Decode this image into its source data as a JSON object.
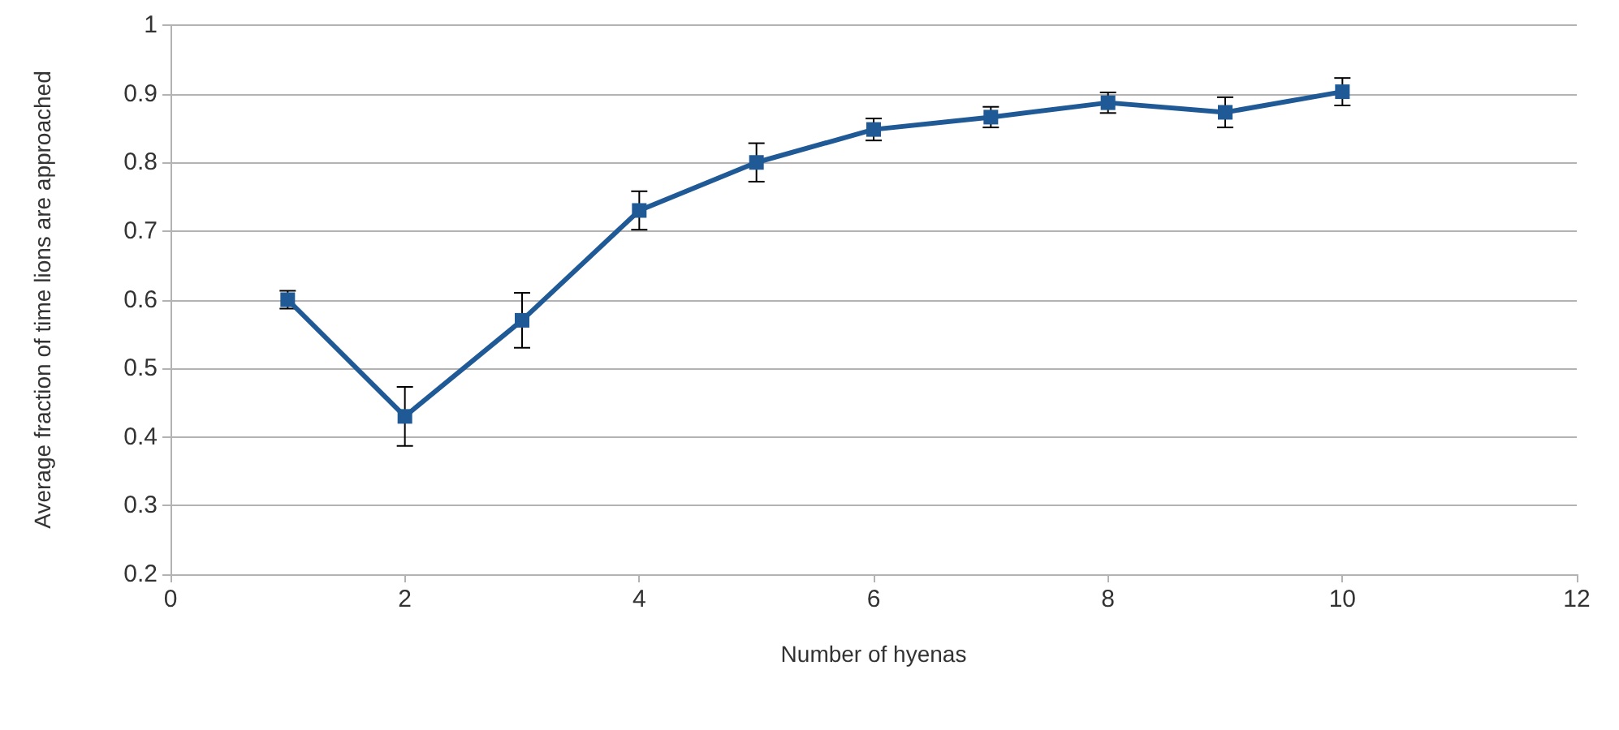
{
  "chart_data": {
    "type": "line",
    "xlabel": "Number of hyenas",
    "ylabel": "Average fraction of time lions are approached",
    "x": [
      1,
      2,
      3,
      4,
      5,
      6,
      7,
      8,
      9,
      10
    ],
    "series": [
      {
        "color": "#1f5a96",
        "values": [
          0.6,
          0.43,
          0.57,
          0.73,
          0.8,
          0.848,
          0.866,
          0.887,
          0.873,
          0.903
        ],
        "errors": [
          0.013,
          0.043,
          0.04,
          0.028,
          0.028,
          0.016,
          0.015,
          0.015,
          0.022,
          0.02
        ]
      }
    ],
    "xlim": [
      0,
      12
    ],
    "xticks": [
      0,
      2,
      4,
      6,
      8,
      10,
      12
    ],
    "ylim": [
      0.2,
      1
    ],
    "yticks": [
      0.2,
      0.3,
      0.4,
      0.5,
      0.6,
      0.7,
      0.8,
      0.9,
      1
    ],
    "grid": "y",
    "marker": "square",
    "line_style": "solid"
  }
}
